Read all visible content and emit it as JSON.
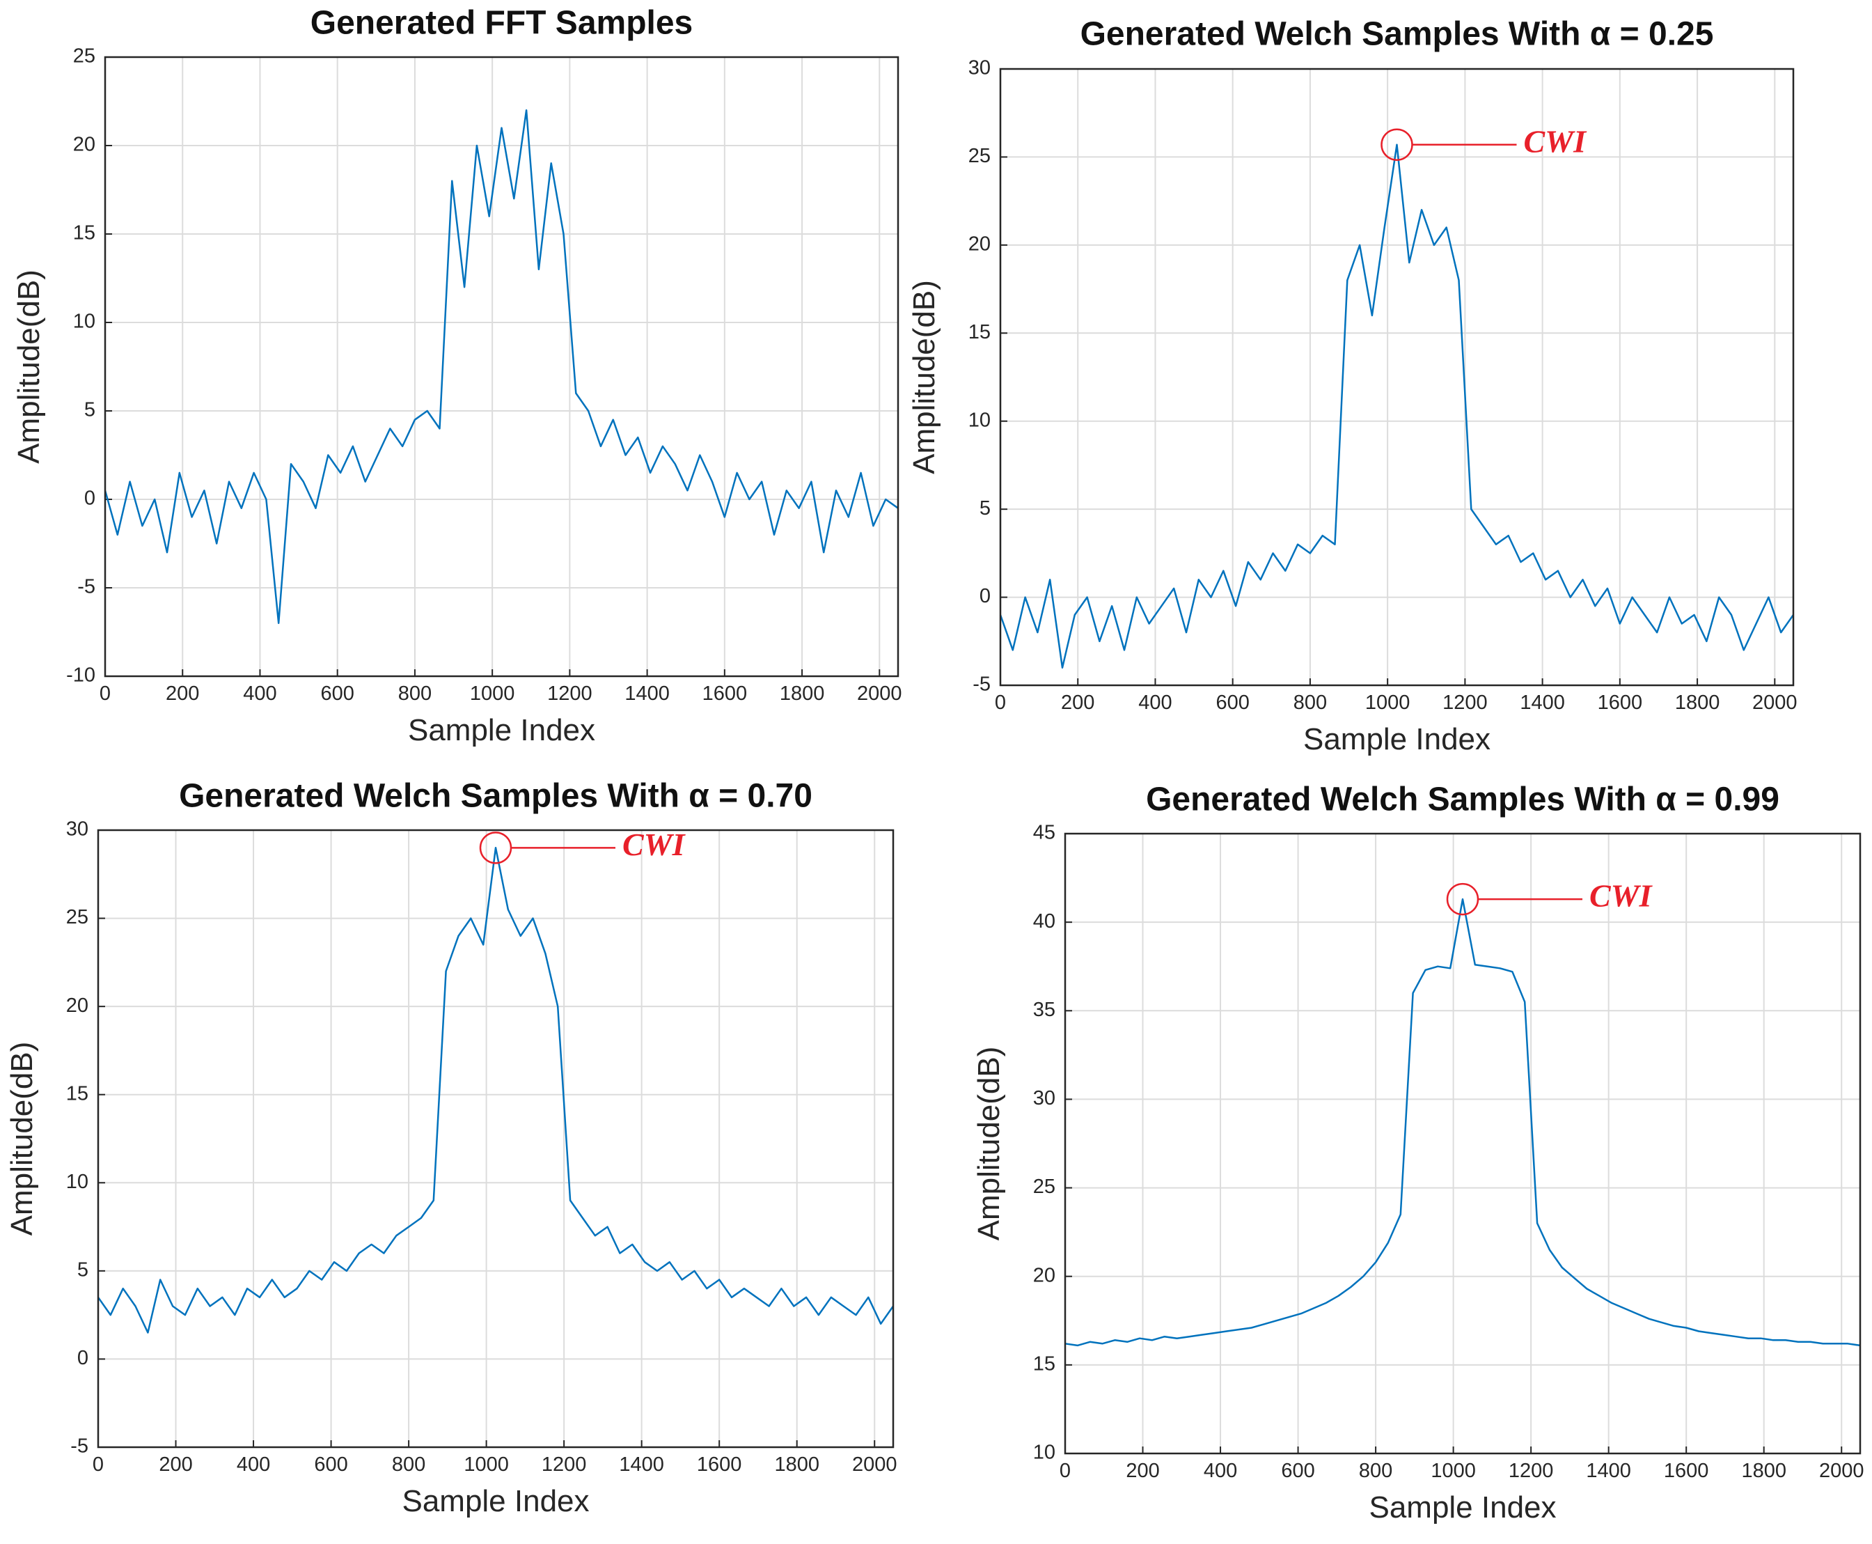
{
  "chart_data": [
    {
      "type": "line",
      "title": "Generated FFT Samples",
      "xlabel": "Sample Index",
      "ylabel": "Amplitude(dB)",
      "x": [
        0,
        32,
        64,
        96,
        128,
        160,
        192,
        224,
        256,
        288,
        320,
        352,
        384,
        416,
        448,
        480,
        512,
        544,
        576,
        608,
        640,
        672,
        704,
        736,
        768,
        800,
        832,
        864,
        896,
        928,
        960,
        992,
        1024,
        1056,
        1088,
        1120,
        1152,
        1184,
        1216,
        1248,
        1280,
        1312,
        1344,
        1376,
        1408,
        1440,
        1472,
        1504,
        1536,
        1568,
        1600,
        1632,
        1664,
        1696,
        1728,
        1760,
        1792,
        1824,
        1856,
        1888,
        1920,
        1952,
        1984,
        2016,
        2048
      ],
      "series": [
        {
          "color": "#0072bd",
          "values": [
            0.5,
            -2,
            1,
            -1.5,
            0,
            -3,
            1.5,
            -1,
            0.5,
            -2.5,
            1,
            -0.5,
            1.5,
            0,
            -7,
            2,
            1,
            -0.5,
            2.5,
            1.5,
            3,
            1,
            2.5,
            4,
            3,
            4.5,
            5,
            4,
            18,
            12,
            20,
            16,
            21,
            17,
            22,
            13,
            19,
            15,
            6,
            5,
            3,
            4.5,
            2.5,
            3.5,
            1.5,
            3,
            2,
            0.5,
            2.5,
            1,
            -1,
            1.5,
            0,
            1,
            -2,
            0.5,
            -0.5,
            1,
            -3,
            0.5,
            -1,
            1.5,
            -1.5,
            0,
            -0.5
          ]
        }
      ],
      "xlim": [
        0,
        2048
      ],
      "ylim": [
        -10,
        25
      ],
      "xticks": [
        0,
        200,
        400,
        600,
        800,
        1000,
        1200,
        1400,
        1600,
        1800,
        2000
      ],
      "yticks": [
        -10,
        -5,
        0,
        5,
        10,
        15,
        20,
        25
      ],
      "grid": true
    },
    {
      "type": "line",
      "title": "Generated Welch Samples With α = 0.25",
      "xlabel": "Sample Index",
      "ylabel": "Amplitude(dB)",
      "x": [
        0,
        32,
        64,
        96,
        128,
        160,
        192,
        224,
        256,
        288,
        320,
        352,
        384,
        416,
        448,
        480,
        512,
        544,
        576,
        608,
        640,
        672,
        704,
        736,
        768,
        800,
        832,
        864,
        896,
        928,
        960,
        992,
        1024,
        1056,
        1088,
        1120,
        1152,
        1184,
        1216,
        1248,
        1280,
        1312,
        1344,
        1376,
        1408,
        1440,
        1472,
        1504,
        1536,
        1568,
        1600,
        1632,
        1664,
        1696,
        1728,
        1760,
        1792,
        1824,
        1856,
        1888,
        1920,
        1952,
        1984,
        2016,
        2048
      ],
      "series": [
        {
          "color": "#0072bd",
          "values": [
            -1,
            -3,
            0,
            -2,
            1,
            -4,
            -1,
            0,
            -2.5,
            -0.5,
            -3,
            0,
            -1.5,
            -0.5,
            0.5,
            -2,
            1,
            0,
            1.5,
            -0.5,
            2,
            1,
            2.5,
            1.5,
            3,
            2.5,
            3.5,
            3,
            18,
            20,
            16,
            21,
            25.7,
            19,
            22,
            20,
            21,
            18,
            5,
            4,
            3,
            3.5,
            2,
            2.5,
            1,
            1.5,
            0,
            1,
            -0.5,
            0.5,
            -1.5,
            0,
            -1,
            -2,
            0,
            -1.5,
            -1,
            -2.5,
            0,
            -1,
            -3,
            -1.5,
            0,
            -2,
            -1
          ]
        }
      ],
      "xlim": [
        0,
        2048
      ],
      "ylim": [
        -5,
        30
      ],
      "xticks": [
        0,
        200,
        400,
        600,
        800,
        1000,
        1200,
        1400,
        1600,
        1800,
        2000
      ],
      "yticks": [
        -5,
        0,
        5,
        10,
        15,
        20,
        25,
        30
      ],
      "grid": true,
      "annotation": {
        "text": "CWI",
        "x": 1024,
        "y": 25.7,
        "color": "#e8202a"
      }
    },
    {
      "type": "line",
      "title": "Generated Welch Samples With α = 0.70",
      "xlabel": "Sample Index",
      "ylabel": "Amplitude(dB)",
      "x": [
        0,
        32,
        64,
        96,
        128,
        160,
        192,
        224,
        256,
        288,
        320,
        352,
        384,
        416,
        448,
        480,
        512,
        544,
        576,
        608,
        640,
        672,
        704,
        736,
        768,
        800,
        832,
        864,
        896,
        928,
        960,
        992,
        1024,
        1056,
        1088,
        1120,
        1152,
        1184,
        1216,
        1248,
        1280,
        1312,
        1344,
        1376,
        1408,
        1440,
        1472,
        1504,
        1536,
        1568,
        1600,
        1632,
        1664,
        1696,
        1728,
        1760,
        1792,
        1824,
        1856,
        1888,
        1920,
        1952,
        1984,
        2016,
        2048
      ],
      "series": [
        {
          "color": "#0072bd",
          "values": [
            3.5,
            2.5,
            4,
            3,
            1.5,
            4.5,
            3,
            2.5,
            4,
            3,
            3.5,
            2.5,
            4,
            3.5,
            4.5,
            3.5,
            4,
            5,
            4.5,
            5.5,
            5,
            6,
            6.5,
            6,
            7,
            7.5,
            8,
            9,
            22,
            24,
            25,
            23.5,
            29,
            25.5,
            24,
            25,
            23,
            20,
            9,
            8,
            7,
            7.5,
            6,
            6.5,
            5.5,
            5,
            5.5,
            4.5,
            5,
            4,
            4.5,
            3.5,
            4,
            3.5,
            3,
            4,
            3,
            3.5,
            2.5,
            3.5,
            3,
            2.5,
            3.5,
            2,
            3
          ]
        }
      ],
      "xlim": [
        0,
        2048
      ],
      "ylim": [
        -5,
        30
      ],
      "xticks": [
        0,
        200,
        400,
        600,
        800,
        1000,
        1200,
        1400,
        1600,
        1800,
        2000
      ],
      "yticks": [
        -5,
        0,
        5,
        10,
        15,
        20,
        25,
        30
      ],
      "grid": true,
      "annotation": {
        "text": "CWI",
        "x": 1024,
        "y": 29,
        "color": "#e8202a"
      }
    },
    {
      "type": "line",
      "title": "Generated Welch Samples With α = 0.99",
      "xlabel": "Sample Index",
      "ylabel": "Amplitude(dB)",
      "x": [
        0,
        32,
        64,
        96,
        128,
        160,
        192,
        224,
        256,
        288,
        320,
        352,
        384,
        416,
        448,
        480,
        512,
        544,
        576,
        608,
        640,
        672,
        704,
        736,
        768,
        800,
        832,
        864,
        896,
        928,
        960,
        992,
        1024,
        1056,
        1088,
        1120,
        1152,
        1184,
        1216,
        1248,
        1280,
        1312,
        1344,
        1376,
        1408,
        1440,
        1472,
        1504,
        1536,
        1568,
        1600,
        1632,
        1664,
        1696,
        1728,
        1760,
        1792,
        1824,
        1856,
        1888,
        1920,
        1952,
        1984,
        2016,
        2048
      ],
      "series": [
        {
          "color": "#0072bd",
          "values": [
            16.2,
            16.1,
            16.3,
            16.2,
            16.4,
            16.3,
            16.5,
            16.4,
            16.6,
            16.5,
            16.6,
            16.7,
            16.8,
            16.9,
            17.0,
            17.1,
            17.3,
            17.5,
            17.7,
            17.9,
            18.2,
            18.5,
            18.9,
            19.4,
            20,
            20.8,
            21.9,
            23.5,
            36,
            37.3,
            37.5,
            37.4,
            41.3,
            37.6,
            37.5,
            37.4,
            37.2,
            35.5,
            23,
            21.5,
            20.5,
            19.9,
            19.3,
            18.9,
            18.5,
            18.2,
            17.9,
            17.6,
            17.4,
            17.2,
            17.1,
            16.9,
            16.8,
            16.7,
            16.6,
            16.5,
            16.5,
            16.4,
            16.4,
            16.3,
            16.3,
            16.2,
            16.2,
            16.2,
            16.1
          ]
        }
      ],
      "xlim": [
        0,
        2048
      ],
      "ylim": [
        10,
        45
      ],
      "xticks": [
        0,
        200,
        400,
        600,
        800,
        1000,
        1200,
        1400,
        1600,
        1800,
        2000
      ],
      "yticks": [
        10,
        15,
        20,
        25,
        30,
        35,
        40,
        45
      ],
      "grid": true,
      "annotation": {
        "text": "CWI",
        "x": 1024,
        "y": 41.3,
        "color": "#e8202a"
      }
    }
  ]
}
